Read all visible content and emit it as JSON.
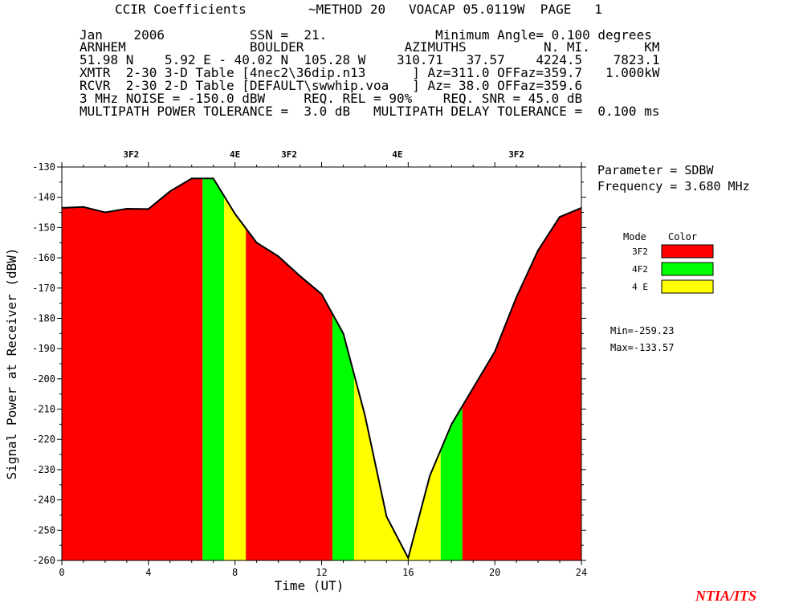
{
  "header": {
    "lines": [
      "CCIR Coefficients        ~METHOD 20   VOACAP 05.0119W  PAGE   1",
      "Jan    2006           SSN =  21.              Minimum Angle= 0.100 degrees",
      "ARNHEM                BOULDER             AZIMUTHS          N. MI.       KM",
      "51.98 N    5.92 E - 40.02 N  105.28 W    310.71   37.57    4224.5    7823.1",
      "XMTR  2-30 3-D Table [4nec2\\36dip.n13      ] Az=311.0 OFFaz=359.7   1.000kW",
      "RCVR  2-30 2-D Table [DEFAULT\\swwhip.voa   ] Az= 38.0 OFFaz=359.6",
      "3 MHz NOISE = -150.0 dBW     REQ. REL = 90%    REQ. SNR = 45.0 dB",
      "MULTIPATH POWER TOLERANCE =  3.0 dB   MULTIPATH DELAY TOLERANCE =  0.100 ms"
    ]
  },
  "side": {
    "parameter": "Parameter = SDBW",
    "frequency": "Frequency =  3.680 MHz",
    "legend_mode_header": "Mode",
    "legend_color_header": "Color",
    "min": "Min=-259.23",
    "max": "Max=-133.57"
  },
  "credit": "NTIA/ITS",
  "chart_data": {
    "type": "area",
    "xlabel": "Time (UT)",
    "ylabel": "Signal Power at Receiver (dBW)",
    "xlim": [
      0,
      24
    ],
    "ylim": [
      -260,
      -130
    ],
    "x_ticks": [
      0,
      4,
      8,
      12,
      16,
      20,
      24
    ],
    "y_ticks": [
      -130,
      -140,
      -150,
      -160,
      -170,
      -180,
      -190,
      -200,
      -210,
      -220,
      -230,
      -240,
      -250,
      -260
    ],
    "x": [
      0,
      1,
      2,
      3,
      4,
      5,
      6,
      7,
      8,
      9,
      10,
      11,
      12,
      13,
      14,
      15,
      16,
      17,
      18,
      19,
      20,
      21,
      22,
      23,
      24
    ],
    "values": [
      -143.5,
      -143.2,
      -145,
      -143.8,
      -143.9,
      -138,
      -133.8,
      -133.8,
      -145.5,
      -155,
      -159.5,
      -166,
      -172,
      -185,
      -212,
      -245.5,
      -259.2,
      -232,
      -215,
      -203,
      -191,
      -173,
      -157.5,
      -146.5,
      -143.5
    ],
    "modes": [
      {
        "name": "3F2",
        "color": "#ff0000"
      },
      {
        "name": "4F2",
        "color": "#00ff00"
      },
      {
        "name": "4 E",
        "color": "#ffff00"
      }
    ],
    "bands": [
      {
        "start": 0,
        "end": 6.5,
        "mode": 0
      },
      {
        "start": 6.5,
        "end": 7.5,
        "mode": 1
      },
      {
        "start": 7.5,
        "end": 8.5,
        "mode": 2
      },
      {
        "start": 8.5,
        "end": 12.5,
        "mode": 0
      },
      {
        "start": 12.5,
        "end": 13.5,
        "mode": 1
      },
      {
        "start": 13.5,
        "end": 17.5,
        "mode": 2
      },
      {
        "start": 17.5,
        "end": 18.5,
        "mode": 1
      },
      {
        "start": 18.5,
        "end": 24,
        "mode": 0
      }
    ],
    "top_labels": [
      {
        "text": "3F2",
        "x": 3.2
      },
      {
        "text": "4E",
        "x": 8
      },
      {
        "text": "3F2",
        "x": 10.5
      },
      {
        "text": "4E",
        "x": 15.5
      },
      {
        "text": "3F2",
        "x": 21
      }
    ]
  }
}
